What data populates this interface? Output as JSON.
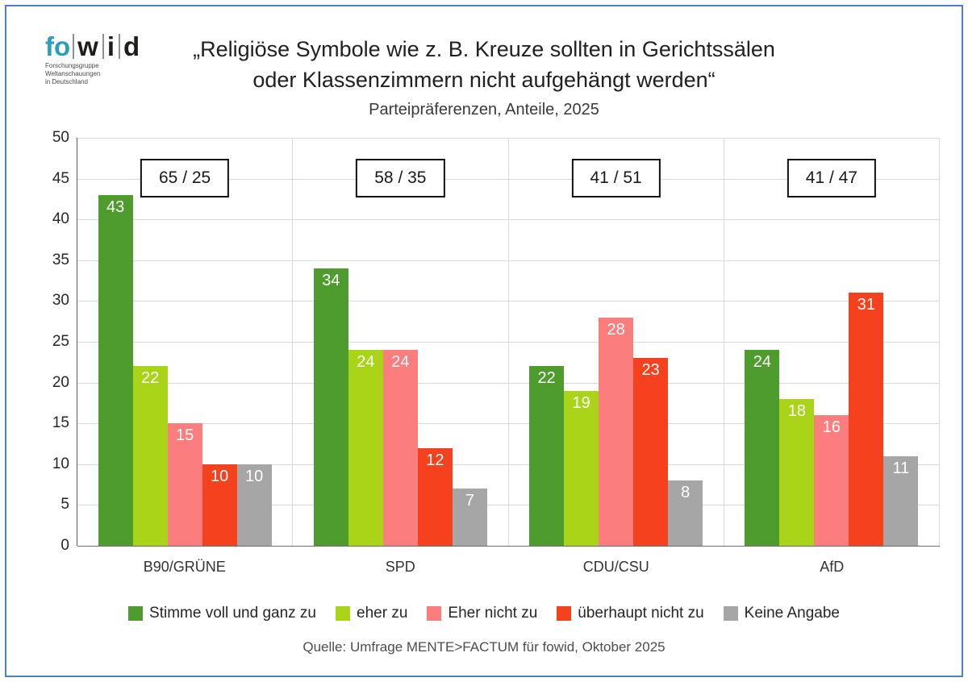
{
  "page": {
    "border_color": "#4d7ebf"
  },
  "logo": {
    "fo": "fo",
    "w": "w",
    "i": "i",
    "d": "d",
    "subtitle_lines": [
      "Forschungsgruppe",
      "Weltanschauungen",
      "in Deutschland"
    ],
    "accent_color": "#2b9dbf"
  },
  "header": {
    "title_line1": "„Religiöse Symbole wie z. B. Kreuze sollten in Gerichtssälen",
    "title_line2": "oder Klassenzimmern nicht aufgehängt werden“",
    "subtitle": "Parteipräferenzen, Anteile, 2025"
  },
  "chart_data": {
    "type": "bar",
    "title": "„Religiöse Symbole wie z. B. Kreuze sollten in Gerichtssälen oder Klassenzimmern nicht aufgehängt werden“",
    "subtitle": "Parteipräferenzen, Anteile, 2025",
    "categories": [
      "B90/GRÜNE",
      "SPD",
      "CDU/CSU",
      "AfD"
    ],
    "series": [
      {
        "name": "Stimme voll und ganz zu",
        "color": "#4e9c2e",
        "values": [
          43,
          34,
          22,
          24
        ]
      },
      {
        "name": "eher zu",
        "color": "#a9d418",
        "values": [
          22,
          24,
          19,
          18
        ]
      },
      {
        "name": "Eher nicht zu",
        "color": "#fb7d7d",
        "values": [
          15,
          24,
          28,
          16
        ]
      },
      {
        "name": "überhaupt nicht zu",
        "color": "#f5411d",
        "values": [
          10,
          12,
          23,
          31
        ]
      },
      {
        "name": "Keine Angabe",
        "color": "#a6a6a6",
        "values": [
          10,
          7,
          8,
          11
        ]
      }
    ],
    "group_boxes": [
      "65 / 25",
      "58 / 35",
      "41 / 51",
      "41 / 47"
    ],
    "xlabel": "",
    "ylabel": "",
    "ylim": [
      0,
      50
    ],
    "ytick_step": 5,
    "grid": true,
    "legend_position": "bottom"
  },
  "footer": {
    "source": "Quelle: Umfrage MENTE>FACTUM für fowid, Oktober 2025"
  }
}
